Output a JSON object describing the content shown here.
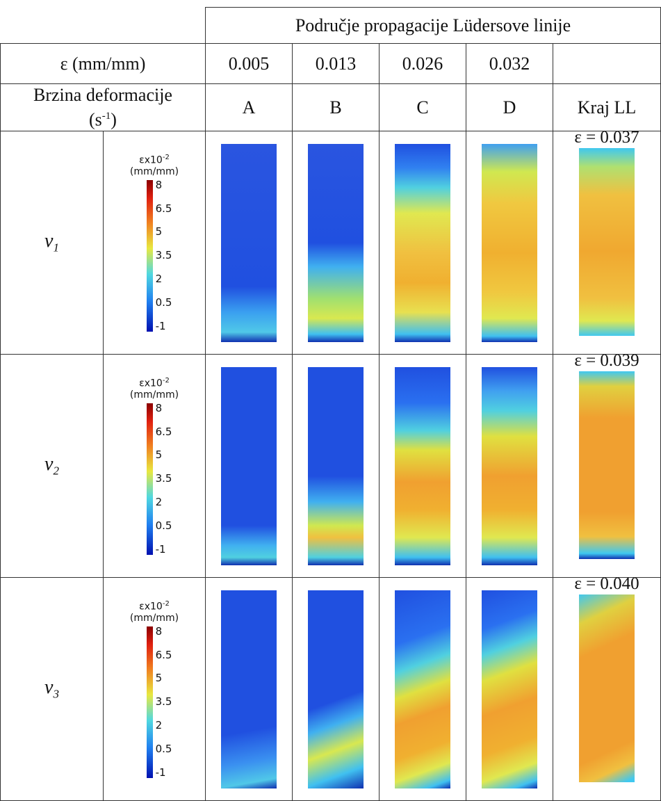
{
  "header": {
    "title": "Područje propagacije Lüdersove linije"
  },
  "strain_row": {
    "label": "ε (mm/mm)",
    "values": [
      "0.005",
      "0.013",
      "0.026",
      "0.032"
    ]
  },
  "rate_row": {
    "label": "Brzina deformacije",
    "unit_open": "(s",
    "unit_sup": "-1",
    "unit_close": ")",
    "columns": [
      "A",
      "B",
      "C",
      "D",
      "Kraj LL"
    ]
  },
  "legend": {
    "title": "εx10",
    "title_sup": "-2",
    "unit": "(mm/mm)",
    "ticks": [
      "8",
      "6.5",
      "5",
      "3.5",
      "2",
      "0.5",
      "-1"
    ]
  },
  "rows": [
    {
      "symbol": "v",
      "index": "1",
      "end_strain": "ε = 0.037"
    },
    {
      "symbol": "v",
      "index": "2",
      "end_strain": "ε = 0.039"
    },
    {
      "symbol": "v",
      "index": "3",
      "end_strain": "ε = 0.040"
    }
  ]
}
